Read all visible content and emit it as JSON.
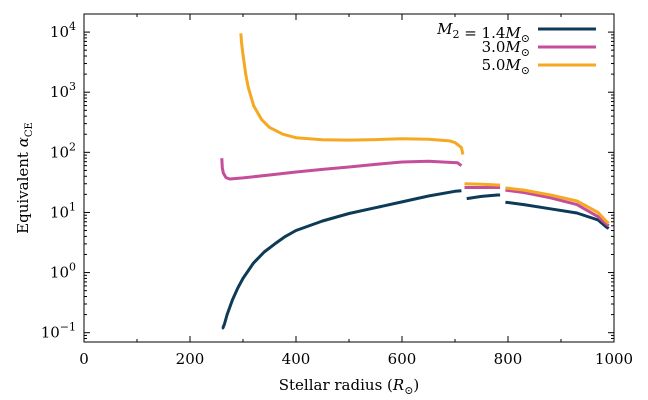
{
  "chart_data": {
    "type": "line",
    "xlabel": "Stellar radius (R⊙)",
    "ylabel": "Equivalent αCE",
    "xlim": [
      0,
      1000
    ],
    "ylim": [
      0.07,
      20000
    ],
    "yscale": "log",
    "x_ticks": [
      "0",
      "200",
      "400",
      "600",
      "800",
      "1000"
    ],
    "y_ticks": [
      {
        "base": "10",
        "exp": "−1",
        "value": 0.1
      },
      {
        "base": "10",
        "exp": "0",
        "value": 1
      },
      {
        "base": "10",
        "exp": "1",
        "value": 10
      },
      {
        "base": "10",
        "exp": "2",
        "value": 100
      },
      {
        "base": "10",
        "exp": "3",
        "value": 1000
      },
      {
        "base": "10",
        "exp": "4",
        "value": 10000
      }
    ],
    "legend_position": "top-right",
    "grid": false,
    "series": [
      {
        "name": "M2 = 1.4M⊙",
        "color": "#0d3b57",
        "segments": [
          [
            [
              260,
              0.12
            ],
            [
              262,
              0.12
            ],
            [
              265,
              0.14
            ],
            [
              270,
              0.2
            ],
            [
              280,
              0.35
            ],
            [
              290,
              0.55
            ],
            [
              300,
              0.8
            ],
            [
              320,
              1.45
            ],
            [
              340,
              2.2
            ],
            [
              360,
              3.0
            ],
            [
              380,
              4.0
            ],
            [
              400,
              5.0
            ],
            [
              450,
              7.2
            ],
            [
              500,
              9.6
            ],
            [
              550,
              12.0
            ],
            [
              600,
              15.0
            ],
            [
              650,
              18.8
            ],
            [
              700,
              22.5
            ],
            [
              712,
              23.0
            ]
          ],
          [
            [
              722,
              17.0
            ],
            [
              750,
              18.5
            ],
            [
              780,
              19.5
            ],
            [
              785,
              19.5
            ]
          ],
          [
            [
              795,
              14.8
            ],
            [
              830,
              13.5
            ],
            [
              880,
              11.5
            ],
            [
              930,
              9.8
            ],
            [
              970,
              7.5
            ],
            [
              985,
              5.8
            ],
            [
              990,
              5.4
            ]
          ]
        ]
      },
      {
        "name": "3.0M⊙",
        "color": "#c44e9a",
        "segments": [
          [
            [
              260,
              80
            ],
            [
              261,
              55
            ],
            [
              263,
              45
            ],
            [
              268,
              38
            ],
            [
              275,
              36
            ],
            [
              300,
              37.5
            ],
            [
              350,
              42
            ],
            [
              400,
              47
            ],
            [
              450,
              52
            ],
            [
              500,
              57
            ],
            [
              550,
              63
            ],
            [
              600,
              69
            ],
            [
              650,
              71
            ],
            [
              690,
              68
            ],
            [
              705,
              67
            ],
            [
              712,
              60
            ]
          ],
          [
            [
              718,
              26
            ],
            [
              750,
              26
            ],
            [
              785,
              26
            ]
          ],
          [
            [
              795,
              23.5
            ],
            [
              830,
              21.5
            ],
            [
              880,
              17.5
            ],
            [
              930,
              13.5
            ],
            [
              970,
              8.5
            ],
            [
              985,
              6.5
            ],
            [
              990,
              6.0
            ]
          ]
        ]
      },
      {
        "name": "5.0M⊙",
        "color": "#f6a821",
        "segments": [
          [
            [
              296,
              9500
            ],
            [
              297,
              7000
            ],
            [
              300,
              4200
            ],
            [
              305,
              2000
            ],
            [
              310,
              1200
            ],
            [
              320,
              600
            ],
            [
              335,
              350
            ],
            [
              350,
              260
            ],
            [
              375,
              200
            ],
            [
              400,
              175
            ],
            [
              450,
              162
            ],
            [
              500,
              160
            ],
            [
              550,
              163
            ],
            [
              600,
              168
            ],
            [
              650,
              165
            ],
            [
              690,
              155
            ],
            [
              700,
              145
            ],
            [
              712,
              120
            ],
            [
              715,
              92
            ]
          ],
          [
            [
              718,
              30
            ],
            [
              750,
              29.5
            ],
            [
              785,
              28.5
            ]
          ],
          [
            [
              795,
              25.5
            ],
            [
              830,
              23.5
            ],
            [
              880,
              19.5
            ],
            [
              930,
              15.5
            ],
            [
              970,
              10
            ],
            [
              985,
              7.2
            ],
            [
              990,
              6.6
            ]
          ]
        ]
      }
    ]
  }
}
